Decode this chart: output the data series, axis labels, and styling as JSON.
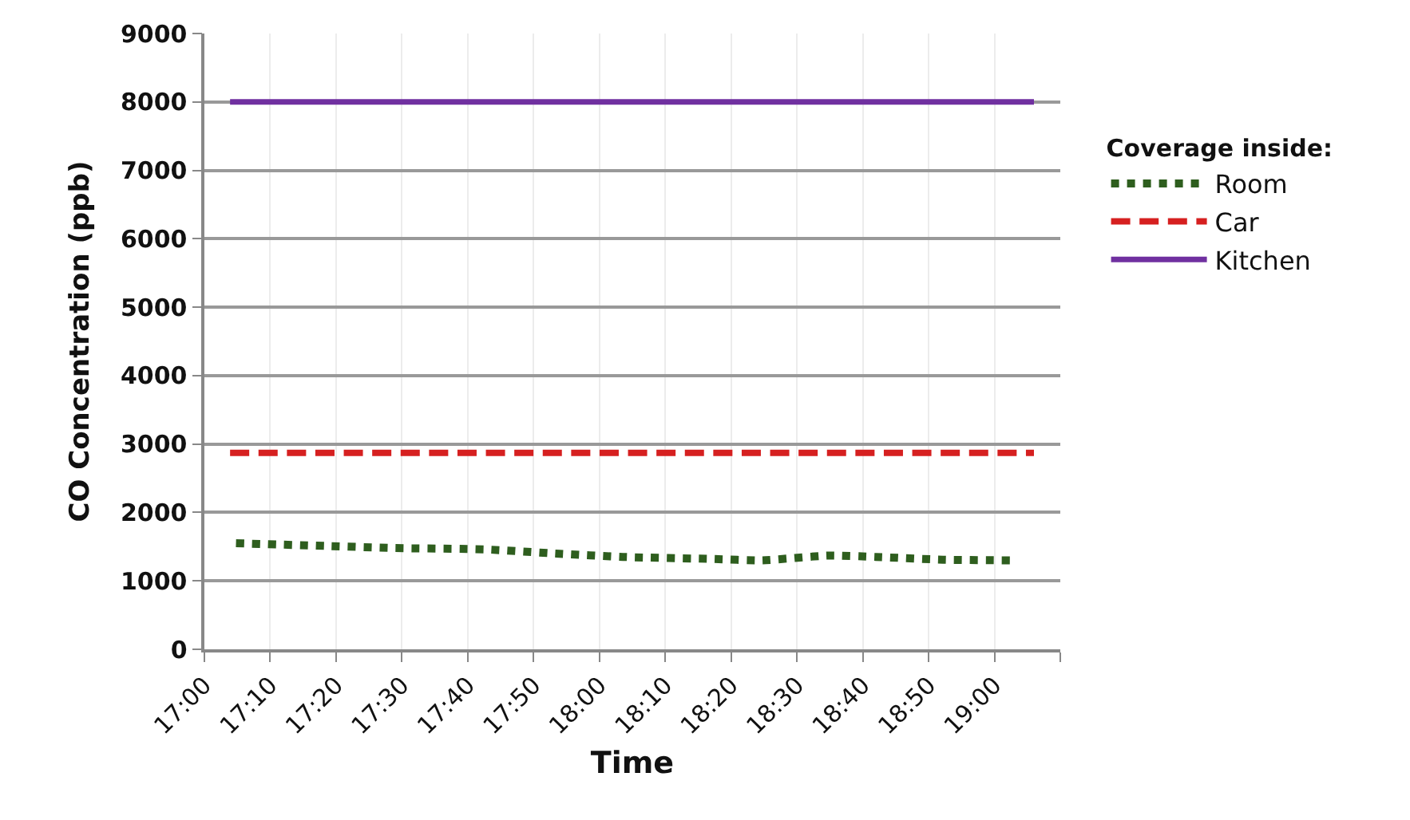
{
  "chart_data": {
    "type": "line",
    "xlabel": "Time",
    "ylabel": "CO Concentration (ppb)",
    "legend_title": "Coverage inside:",
    "xlim": [
      17,
      19.1667
    ],
    "xticks": [
      {
        "value": 17,
        "label": "17:00"
      },
      {
        "value": 17.1667,
        "label": "17:10"
      },
      {
        "value": 17.3333,
        "label": "17:20"
      },
      {
        "value": 17.5,
        "label": "17:30"
      },
      {
        "value": 17.6667,
        "label": "17:40"
      },
      {
        "value": 17.8333,
        "label": "17:50"
      },
      {
        "value": 18,
        "label": "18:00"
      },
      {
        "value": 18.1667,
        "label": "18:10"
      },
      {
        "value": 18.3333,
        "label": "18:20"
      },
      {
        "value": 18.5,
        "label": "18:30"
      },
      {
        "value": 18.6667,
        "label": "18:40"
      },
      {
        "value": 18.8333,
        "label": "18:50"
      },
      {
        "value": 19,
        "label": "19:00"
      },
      {
        "value": 19.1667,
        "label": null
      }
    ],
    "ylim": [
      0,
      9000
    ],
    "yticks": [
      0,
      1000,
      2000,
      3000,
      4000,
      5000,
      6000,
      7000,
      8000,
      9000
    ],
    "grid": true,
    "legend": "right",
    "marker": "none",
    "series": [
      {
        "name": "Room",
        "color": "#2e5e1e",
        "line_style": "dotted",
        "x": [
          17.08,
          17.31,
          17.48,
          17.71,
          17.89,
          18.06,
          18.29,
          18.41,
          18.58,
          18.7,
          18.87,
          19.04
        ],
        "values": [
          1550,
          1510,
          1480,
          1460,
          1400,
          1350,
          1320,
          1300,
          1370,
          1350,
          1310,
          1300
        ]
      },
      {
        "name": "Car",
        "color": "#d62020",
        "line_style": "dashed",
        "x": [
          17.065,
          19.1
        ],
        "values": [
          2870,
          2870
        ]
      },
      {
        "name": "Kitchen",
        "color": "#7030a0",
        "line_style": "solid",
        "x": [
          17.065,
          19.1
        ],
        "values": [
          8000,
          8000
        ]
      }
    ]
  }
}
